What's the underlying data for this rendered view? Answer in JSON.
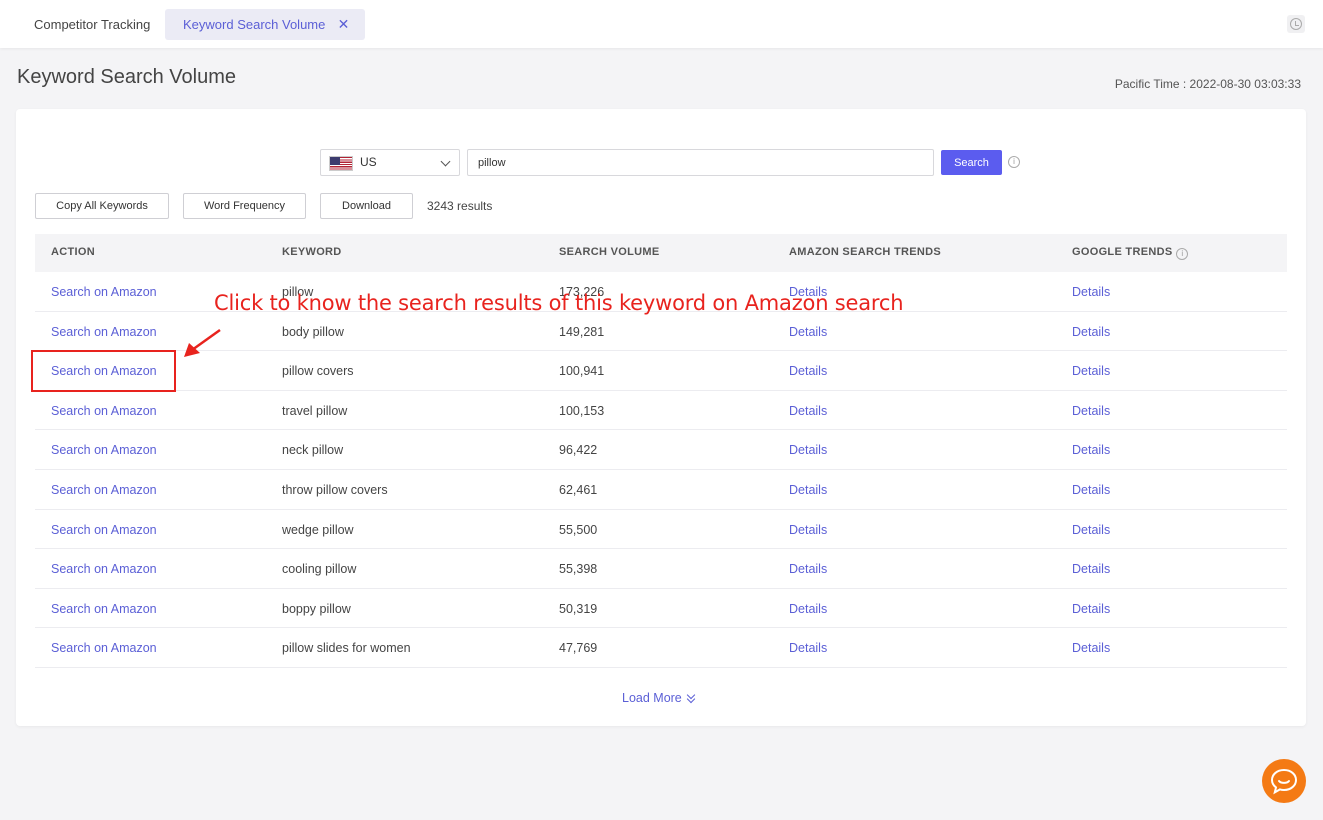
{
  "tabs": [
    {
      "label": "Competitor Tracking",
      "active": false
    },
    {
      "label": "Keyword Search Volume",
      "active": true,
      "close": "✕"
    }
  ],
  "page": {
    "title": "Keyword Search Volume",
    "pacific_time": "Pacific Time :  2022-08-30 03:03:33"
  },
  "search": {
    "country": "US",
    "query": "pillow",
    "button_label": "Search",
    "info_icon": "i"
  },
  "toolbar": {
    "copy_label": "Copy All Keywords",
    "word_freq_label": "Word Frequency",
    "download_label": "Download",
    "result_count": "3243 results"
  },
  "table": {
    "headers": [
      "ACTION",
      "KEYWORD",
      "SEARCH VOLUME",
      "AMAZON SEARCH TRENDS",
      "GOOGLE TRENDS"
    ],
    "rows": [
      {
        "action": "Search on Amazon",
        "keyword": "pillow",
        "volume": "173,226",
        "amazon": "Details",
        "google": "Details"
      },
      {
        "action": "Search on Amazon",
        "keyword": "body pillow",
        "volume": "149,281",
        "amazon": "Details",
        "google": "Details"
      },
      {
        "action": "Search on Amazon",
        "keyword": "pillow covers",
        "volume": "100,941",
        "amazon": "Details",
        "google": "Details"
      },
      {
        "action": "Search on Amazon",
        "keyword": "travel pillow",
        "volume": "100,153",
        "amazon": "Details",
        "google": "Details"
      },
      {
        "action": "Search on Amazon",
        "keyword": "neck pillow",
        "volume": "96,422",
        "amazon": "Details",
        "google": "Details"
      },
      {
        "action": "Search on Amazon",
        "keyword": "throw pillow covers",
        "volume": "62,461",
        "amazon": "Details",
        "google": "Details"
      },
      {
        "action": "Search on Amazon",
        "keyword": "wedge pillow",
        "volume": "55,500",
        "amazon": "Details",
        "google": "Details"
      },
      {
        "action": "Search on Amazon",
        "keyword": "cooling pillow",
        "volume": "55,398",
        "amazon": "Details",
        "google": "Details"
      },
      {
        "action": "Search on Amazon",
        "keyword": "boppy pillow",
        "volume": "50,319",
        "amazon": "Details",
        "google": "Details"
      },
      {
        "action": "Search on Amazon",
        "keyword": "pillow slides for women",
        "volume": "47,769",
        "amazon": "Details",
        "google": "Details"
      }
    ],
    "load_more": "Load More"
  },
  "annotation": {
    "text": "Click to know the search results of this keyword on Amazon search",
    "color": "#e8231e"
  },
  "colors": {
    "accent": "#5b5fd6",
    "button": "#5b5cef",
    "chat": "#f47a14"
  }
}
